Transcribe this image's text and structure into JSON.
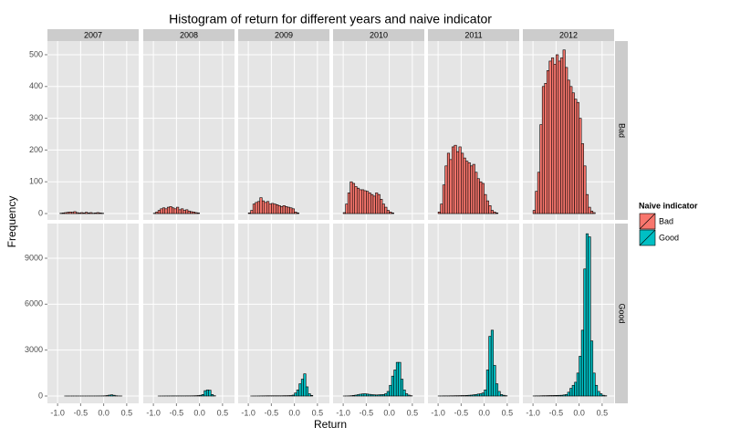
{
  "chart_data": {
    "type": "histogram",
    "title": "Histogram of return for different years and naive indicator",
    "x_label": "Return",
    "y_label": "Frequency",
    "legend_title": "Naive indicator",
    "columns": [
      "2007",
      "2008",
      "2009",
      "2010",
      "2011",
      "2012"
    ],
    "bins": [
      -1.0,
      -0.95,
      -0.9,
      -0.85,
      -0.8,
      -0.75,
      -0.7,
      -0.65,
      -0.6,
      -0.55,
      -0.5,
      -0.45,
      -0.4,
      -0.35,
      -0.3,
      -0.25,
      -0.2,
      -0.15,
      -0.1,
      -0.05,
      0.0,
      0.05,
      0.1,
      0.15,
      0.2,
      0.25,
      0.3,
      0.35,
      0.4,
      0.45,
      0.5,
      0.55,
      0.6,
      0.65,
      0.7
    ],
    "xlim": [
      -1.22,
      0.76
    ],
    "xticks": [
      {
        "value": -1.0,
        "label": "-1.0"
      },
      {
        "value": -0.5,
        "label": "-0.5"
      },
      {
        "value": 0.0,
        "label": "0.0"
      },
      {
        "value": 0.5,
        "label": "0.5"
      }
    ],
    "grid": true,
    "rows": [
      {
        "name": "Bad",
        "color": "#f8766d",
        "ylim": [
          -20,
          543
        ],
        "yticks": [
          0,
          100,
          200,
          300,
          400,
          500
        ],
        "counts": [
          [
            0,
            1,
            2,
            3,
            4,
            5,
            4,
            6,
            3,
            2,
            3,
            2,
            4,
            2,
            3,
            1,
            2,
            3,
            2,
            1,
            0,
            0,
            0,
            0,
            0,
            0,
            0,
            0,
            0,
            0,
            0,
            0,
            0,
            0
          ],
          [
            1,
            5,
            10,
            15,
            18,
            15,
            20,
            22,
            18,
            15,
            20,
            12,
            15,
            10,
            12,
            8,
            6,
            5,
            3,
            2,
            0,
            0,
            0,
            0,
            0,
            0,
            0,
            0,
            0,
            0,
            0,
            0,
            0,
            0
          ],
          [
            2,
            10,
            30,
            35,
            38,
            50,
            40,
            35,
            38,
            30,
            32,
            30,
            28,
            25,
            22,
            25,
            22,
            20,
            18,
            15,
            5,
            2,
            0,
            0,
            0,
            0,
            0,
            0,
            0,
            0,
            0,
            0,
            0,
            0
          ],
          [
            3,
            30,
            65,
            100,
            95,
            85,
            80,
            75,
            75,
            72,
            70,
            65,
            60,
            55,
            65,
            60,
            45,
            30,
            20,
            10,
            5,
            2,
            0,
            0,
            0,
            0,
            0,
            0,
            0,
            0,
            0,
            0,
            0,
            0
          ],
          [
            5,
            30,
            90,
            150,
            190,
            170,
            210,
            215,
            195,
            210,
            190,
            175,
            165,
            160,
            150,
            155,
            130,
            110,
            100,
            95,
            60,
            40,
            25,
            10,
            5,
            2,
            0,
            0,
            0,
            0,
            0,
            0,
            0,
            0
          ],
          [
            10,
            70,
            130,
            280,
            400,
            410,
            450,
            480,
            490,
            470,
            500,
            480,
            490,
            515,
            460,
            420,
            400,
            380,
            360,
            350,
            300,
            220,
            150,
            60,
            20,
            8,
            3,
            0,
            0,
            0,
            0,
            0,
            0,
            0
          ]
        ]
      },
      {
        "name": "Good",
        "color": "#00bfc4",
        "ylim": [
          -477,
          11265
        ],
        "yticks": [
          0,
          3000,
          6000,
          9000
        ],
        "counts": [
          [
            0,
            0,
            0,
            1,
            1,
            1,
            2,
            2,
            2,
            2,
            2,
            2,
            2,
            3,
            3,
            3,
            4,
            5,
            6,
            8,
            15,
            30,
            60,
            80,
            50,
            15,
            5,
            2,
            0,
            0,
            0,
            0,
            0,
            0
          ],
          [
            0,
            0,
            1,
            2,
            3,
            5,
            5,
            6,
            8,
            8,
            8,
            8,
            8,
            8,
            10,
            10,
            12,
            15,
            20,
            30,
            50,
            100,
            350,
            400,
            380,
            100,
            20,
            0,
            0,
            0,
            0,
            0,
            0,
            0
          ],
          [
            0,
            1,
            2,
            3,
            5,
            8,
            10,
            12,
            15,
            15,
            15,
            15,
            15,
            15,
            15,
            20,
            20,
            25,
            30,
            60,
            200,
            400,
            800,
            1100,
            1450,
            600,
            150,
            40,
            0,
            0,
            0,
            0,
            0,
            0
          ],
          [
            2,
            5,
            10,
            20,
            40,
            60,
            90,
            120,
            140,
            150,
            130,
            110,
            90,
            80,
            70,
            80,
            90,
            100,
            150,
            300,
            700,
            1300,
            1700,
            2200,
            2200,
            1100,
            400,
            150,
            60,
            20,
            0,
            0,
            0,
            0
          ],
          [
            5,
            5,
            10,
            10,
            10,
            15,
            15,
            20,
            20,
            25,
            30,
            30,
            40,
            50,
            60,
            80,
            100,
            130,
            150,
            200,
            400,
            1700,
            3900,
            4300,
            2000,
            800,
            300,
            100,
            50,
            20,
            0,
            0,
            0,
            0
          ],
          [
            5,
            10,
            10,
            15,
            20,
            20,
            25,
            30,
            30,
            35,
            40,
            45,
            50,
            70,
            100,
            250,
            500,
            700,
            900,
            1500,
            2600,
            4300,
            8300,
            10600,
            10400,
            3600,
            1500,
            700,
            300,
            150,
            50,
            20,
            0,
            0
          ]
        ]
      }
    ]
  }
}
